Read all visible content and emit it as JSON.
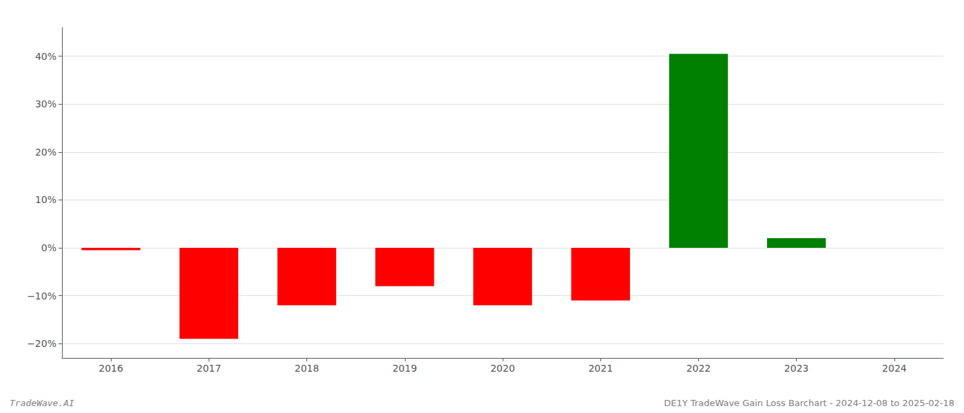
{
  "chart_data": {
    "type": "bar",
    "categories": [
      "2016",
      "2017",
      "2018",
      "2019",
      "2020",
      "2021",
      "2022",
      "2023",
      "2024"
    ],
    "values": [
      -0.5,
      -19.0,
      -12.0,
      -8.0,
      -12.0,
      -11.0,
      40.5,
      2.0,
      0.0
    ],
    "colors": [
      "#ff0000",
      "#ff0000",
      "#ff0000",
      "#ff0000",
      "#ff0000",
      "#ff0000",
      "#008000",
      "#008000",
      "#ff0000"
    ],
    "ylim": [
      -23,
      46
    ],
    "yticks": [
      {
        "value": -20,
        "label": "−20%"
      },
      {
        "value": -10,
        "label": "−10%"
      },
      {
        "value": 0,
        "label": "0%"
      },
      {
        "value": 10,
        "label": "10%"
      },
      {
        "value": 20,
        "label": "20%"
      },
      {
        "value": 30,
        "label": "30%"
      },
      {
        "value": 40,
        "label": "40%"
      }
    ],
    "grid": true,
    "annotations": [
      "TradeWave.AI",
      "DE1Y TradeWave Gain Loss Barchart - 2024-12-08 to 2025-02-18"
    ]
  }
}
